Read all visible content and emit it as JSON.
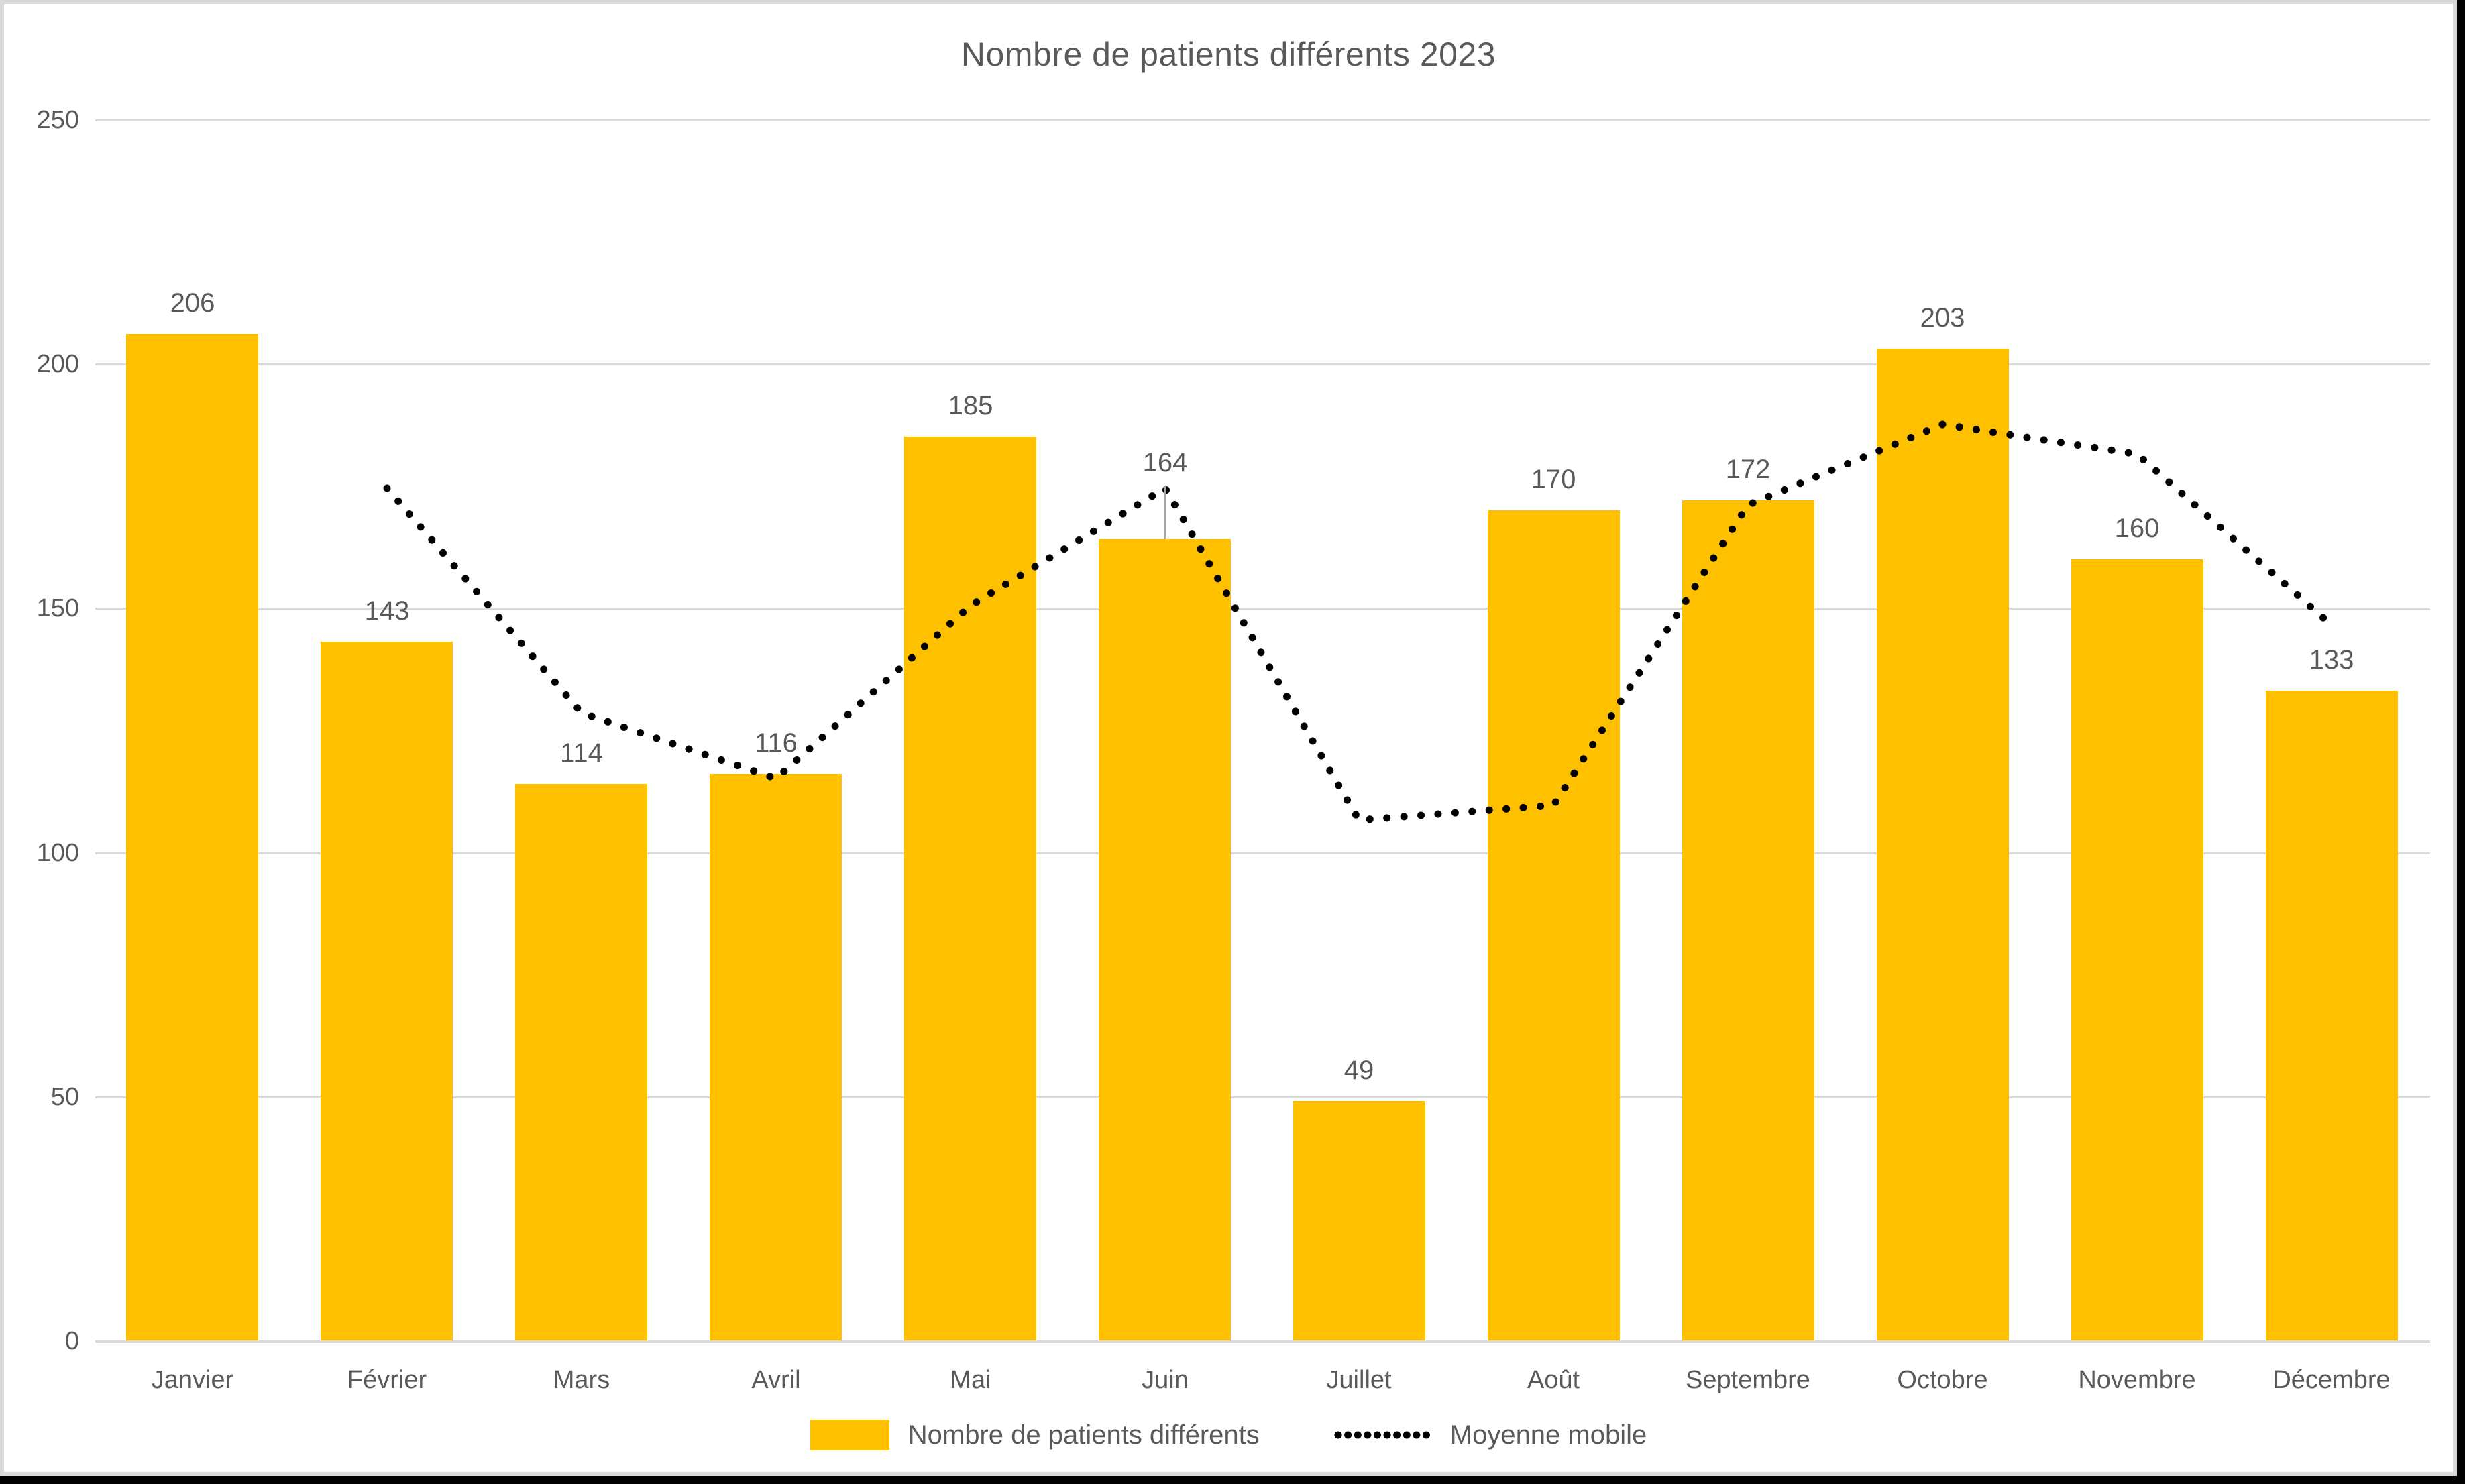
{
  "colors": {
    "bar": "#FFC000",
    "moving_average_line": "#000000",
    "text": "#595959",
    "gridline": "#D9D9D9",
    "leader_line": "#A6A6A6",
    "frame_border": "#D9D9D9",
    "frame_edge": "#000000",
    "background": "#FFFFFF"
  },
  "chart_data": {
    "type": "bar",
    "title": "Nombre de patients différents 2023",
    "categories": [
      "Janvier",
      "Février",
      "Mars",
      "Avril",
      "Mai",
      "Juin",
      "Juillet",
      "Août",
      "Septembre",
      "Octobre",
      "Novembre",
      "Décembre"
    ],
    "series": [
      {
        "name": "Nombre de patients différents",
        "type": "bar",
        "color": "#FFC000",
        "values": [
          206,
          143,
          114,
          116,
          185,
          164,
          49,
          170,
          172,
          203,
          160,
          133
        ],
        "data_labels": [
          206,
          143,
          114,
          116,
          185,
          164,
          49,
          170,
          172,
          203,
          160,
          133
        ]
      },
      {
        "name": "Moyenne mobile",
        "type": "dotted-line",
        "color": "#000000",
        "values": [
          null,
          174.5,
          128.5,
          115,
          150.5,
          174.5,
          106.5,
          109.5,
          171,
          187.5,
          181.5,
          146.5
        ]
      }
    ],
    "xlabel": "",
    "ylabel": "",
    "ylim": [
      0,
      250
    ],
    "yticks": [
      0,
      50,
      100,
      150,
      200,
      250
    ],
    "grid": true,
    "legend_position": "bottom"
  }
}
